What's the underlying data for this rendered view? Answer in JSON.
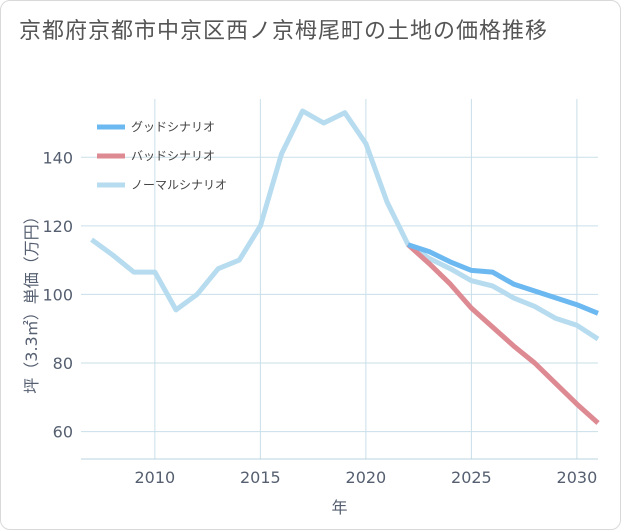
{
  "page_title": "京都府京都市中京区西ノ京栂尾町の土地の価格推移",
  "chart_data": {
    "type": "line",
    "title": "京都府京都市中京区西ノ京栂尾町の土地の価格推移",
    "xlabel": "年",
    "ylabel": "坪（3.3㎡）単価（万円）",
    "xlim": [
      2006.5,
      2031
    ],
    "ylim": [
      52,
      157
    ],
    "x_ticks": [
      2010,
      2015,
      2020,
      2025,
      2030
    ],
    "y_ticks": [
      60,
      80,
      100,
      120,
      140
    ],
    "legend_position": "top-left",
    "series": [
      {
        "name": "グッドシナリオ",
        "color": "#6cb8f0",
        "x": [
          2022,
          2023,
          2024,
          2025,
          2026,
          2027,
          2028,
          2029,
          2030,
          2031
        ],
        "values": [
          114.5,
          112.5,
          109.5,
          107,
          106.5,
          103,
          101,
          99,
          97,
          94.5
        ]
      },
      {
        "name": "バッドシナリオ",
        "color": "#de8a93",
        "x": [
          2022,
          2023,
          2024,
          2025,
          2026,
          2027,
          2028,
          2029,
          2030,
          2031
        ],
        "values": [
          114.5,
          109,
          103,
          96,
          90.5,
          85,
          80,
          74,
          68,
          62.5
        ]
      },
      {
        "name": "ノーマルシナリオ",
        "color": "#b7dcef",
        "x": [
          2007,
          2008,
          2009,
          2010,
          2011,
          2012,
          2013,
          2014,
          2015,
          2016,
          2017,
          2018,
          2019,
          2020,
          2021,
          2022,
          2023,
          2024,
          2025,
          2026,
          2027,
          2028,
          2029,
          2030,
          2031
        ],
        "values": [
          116,
          111.5,
          106.5,
          106.5,
          95.5,
          100,
          107.5,
          110,
          120,
          141,
          153.5,
          150,
          153,
          144,
          127,
          114.5,
          110.5,
          107.5,
          104,
          102.5,
          99,
          96.5,
          93,
          91,
          87
        ]
      }
    ]
  }
}
